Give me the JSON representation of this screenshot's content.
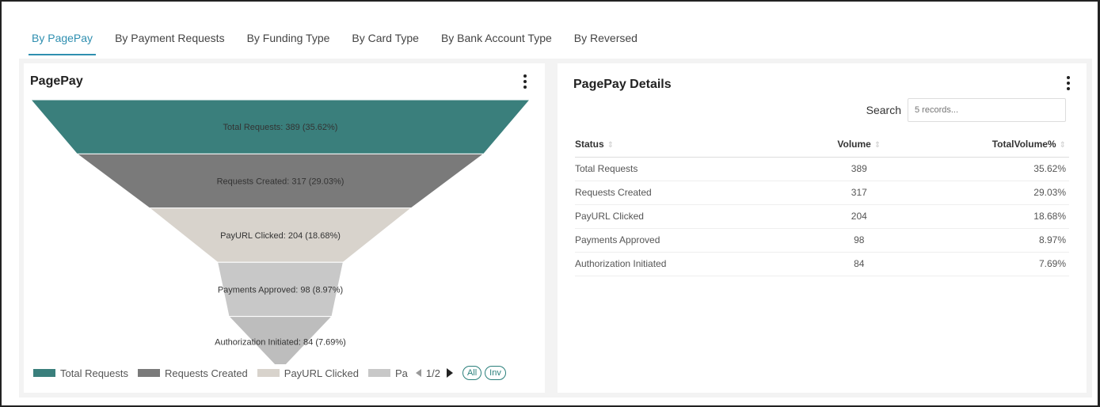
{
  "tabs": [
    {
      "label": "By PagePay",
      "active": true
    },
    {
      "label": "By Payment Requests",
      "active": false
    },
    {
      "label": "By Funding Type",
      "active": false
    },
    {
      "label": "By Card Type",
      "active": false
    },
    {
      "label": "By Bank Account Type",
      "active": false
    },
    {
      "label": "By Reversed",
      "active": false
    }
  ],
  "left_card": {
    "title": "PagePay",
    "legend": {
      "items": [
        {
          "label": "Total Requests",
          "color": "#3a7f7c"
        },
        {
          "label": "Requests Created",
          "color": "#7a7a7a"
        },
        {
          "label": "PayURL Clicked",
          "color": "#d8d3cc"
        },
        {
          "label": "Pa",
          "color": "#c8c8c8"
        }
      ],
      "page": "1/2",
      "all_label": "All",
      "inv_label": "Inv"
    }
  },
  "chart_data": {
    "type": "funnel",
    "categories": [
      "Total Requests",
      "Requests Created",
      "PayURL Clicked",
      "Payments Approved",
      "Authorization Initiated"
    ],
    "values": [
      389,
      317,
      204,
      98,
      84
    ],
    "percents": [
      35.62,
      29.03,
      18.68,
      8.97,
      7.69
    ],
    "labels": [
      "Total Requests: 389 (35.62%)",
      "Requests Created: 317 (29.03%)",
      "PayURL Clicked: 204 (18.68%)",
      "Payments Approved: 98 (8.97%)",
      "Authorization Initiated: 84 (7.69%)"
    ],
    "colors": [
      "#3a7f7c",
      "#7a7a7a",
      "#d8d3cc",
      "#c8c8c8",
      "#bdbdbd"
    ]
  },
  "right_card": {
    "title": "PagePay Details",
    "search": {
      "label": "Search",
      "placeholder": "5 records..."
    },
    "columns": [
      "Status",
      "Volume",
      "TotalVolume%"
    ],
    "sort_icon": "sort-arrows-icon",
    "rows": [
      {
        "status": "Total Requests",
        "volume": "389",
        "pct": "35.62%"
      },
      {
        "status": "Requests Created",
        "volume": "317",
        "pct": "29.03%"
      },
      {
        "status": "PayURL Clicked",
        "volume": "204",
        "pct": "18.68%"
      },
      {
        "status": "Payments Approved",
        "volume": "98",
        "pct": "8.97%"
      },
      {
        "status": "Authorization Initiated",
        "volume": "84",
        "pct": "7.69%"
      }
    ]
  },
  "accent_color": "#2f8fb0"
}
